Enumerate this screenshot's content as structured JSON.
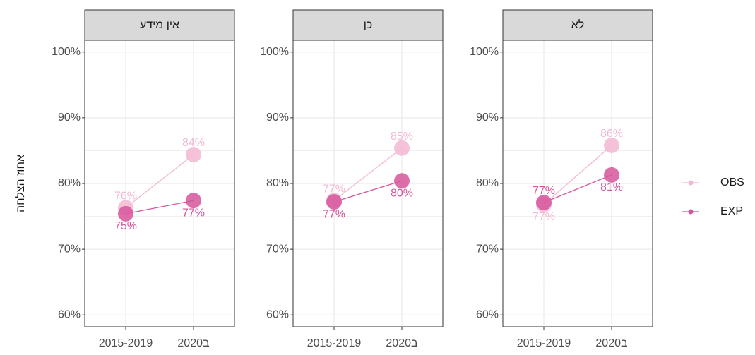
{
  "chart_data": [
    {
      "type": "line",
      "title": "אין מידע",
      "y_label": "אחוז הצלחה",
      "categories": [
        "2015-2019",
        "ב2020"
      ],
      "series": [
        {
          "name": "OBS",
          "color": "#f2b8d3",
          "values": [
            76.3,
            84.4
          ],
          "value_labels": [
            "76%",
            "84%"
          ]
        },
        {
          "name": "EXP",
          "color": "#d6559b",
          "values": [
            75.4,
            77.4
          ],
          "value_labels": [
            "75%",
            "77%"
          ]
        }
      ],
      "ylim": [
        58.2,
        101.8
      ],
      "yticks": [
        {
          "value": 60,
          "label": "60%"
        },
        {
          "value": 70,
          "label": "70%"
        },
        {
          "value": 80,
          "label": "80%"
        },
        {
          "value": 90,
          "label": "90%"
        },
        {
          "value": 100,
          "label": "100%"
        }
      ],
      "grid": true
    },
    {
      "type": "line",
      "title": "כן",
      "categories": [
        "2015-2019",
        "ב2020"
      ],
      "series": [
        {
          "name": "OBS",
          "color": "#f2b8d3",
          "values": [
            77.4,
            85.4
          ],
          "value_labels": [
            "77%",
            "85%"
          ]
        },
        {
          "name": "EXP",
          "color": "#d6559b",
          "values": [
            77.2,
            80.4
          ],
          "value_labels": [
            "77%",
            "80%"
          ]
        }
      ],
      "ylim": [
        58.2,
        101.8
      ],
      "yticks": [
        {
          "value": 60,
          "label": "60%"
        },
        {
          "value": 70,
          "label": "70%"
        },
        {
          "value": 80,
          "label": "80%"
        },
        {
          "value": 90,
          "label": "90%"
        },
        {
          "value": 100,
          "label": "100%"
        }
      ],
      "grid": true
    },
    {
      "type": "line",
      "title": "לא",
      "categories": [
        "2015-2019",
        "ב2020"
      ],
      "series": [
        {
          "name": "OBS",
          "color": "#f2b8d3",
          "values": [
            76.8,
            85.8
          ],
          "value_labels": [
            "77%",
            "86%"
          ]
        },
        {
          "name": "EXP",
          "color": "#d6559b",
          "values": [
            77.1,
            81.3
          ],
          "value_labels": [
            "77%",
            "81%"
          ]
        }
      ],
      "ylim": [
        58.2,
        101.8
      ],
      "yticks": [
        {
          "value": 60,
          "label": "60%"
        },
        {
          "value": 70,
          "label": "70%"
        },
        {
          "value": 80,
          "label": "80%"
        },
        {
          "value": 90,
          "label": "90%"
        },
        {
          "value": 100,
          "label": "100%"
        }
      ],
      "grid": true
    }
  ]
}
